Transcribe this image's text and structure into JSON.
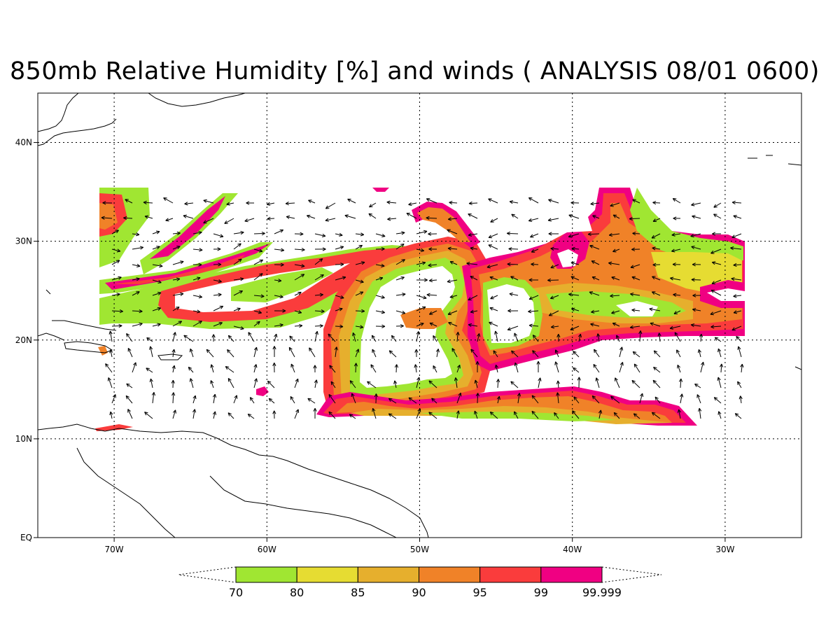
{
  "title": "850mb Relative Humidity [%] and winds ( ANALYSIS 08/01 0600)",
  "map": {
    "lon_range": [
      -75,
      -25
    ],
    "lat_range": [
      0,
      45
    ],
    "lon_ticks": [
      {
        "value": -70,
        "label": "70W"
      },
      {
        "value": -60,
        "label": "60W"
      },
      {
        "value": -50,
        "label": "50W"
      },
      {
        "value": -40,
        "label": "40W"
      },
      {
        "value": -30,
        "label": "30W"
      }
    ],
    "lat_ticks": [
      {
        "value": 0,
        "label": "EQ"
      },
      {
        "value": 10,
        "label": "10N"
      },
      {
        "value": 20,
        "label": "20N"
      },
      {
        "value": 30,
        "label": "30N"
      },
      {
        "value": 40,
        "label": "40N"
      }
    ],
    "gridlines": "dotted"
  },
  "colorbar": {
    "levels": [
      "70",
      "80",
      "85",
      "90",
      "95",
      "99",
      "99.999"
    ],
    "colors": [
      "#a0e632",
      "#e6dc32",
      "#e6af2d",
      "#f08228",
      "#fa3c3c",
      "#f00082"
    ]
  }
}
